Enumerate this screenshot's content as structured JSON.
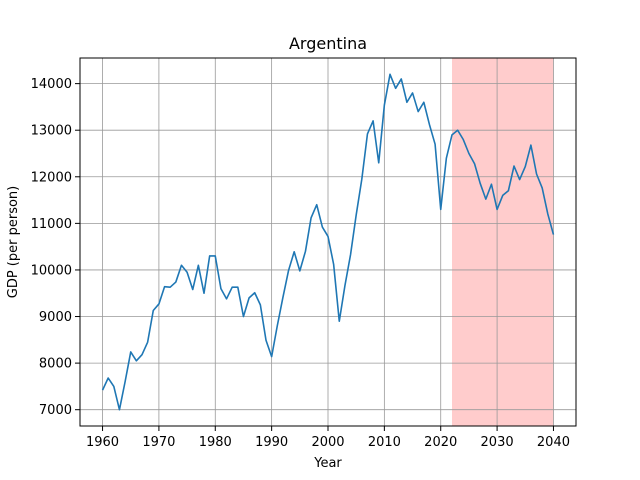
{
  "chart_data": {
    "type": "line",
    "title": "Argentina",
    "xlabel": "Year",
    "ylabel": "GDP (per person)",
    "xlim": [
      1956,
      2044
    ],
    "ylim": [
      6650,
      14550
    ],
    "xticks": [
      1960,
      1970,
      1980,
      1990,
      2000,
      2010,
      2020,
      2030,
      2040
    ],
    "yticks": [
      7000,
      8000,
      9000,
      10000,
      11000,
      12000,
      13000,
      14000
    ],
    "grid": true,
    "line_color": "#1f77b4",
    "highlight": {
      "x_start": 2022,
      "x_end": 2040,
      "color": "#ffcccc"
    },
    "series": [
      {
        "x": [
          1960,
          1961,
          1962,
          1963,
          1964,
          1965,
          1966,
          1967,
          1968,
          1969,
          1970,
          1971,
          1972,
          1973,
          1974,
          1975,
          1976,
          1977,
          1978,
          1979,
          1980,
          1981,
          1982,
          1983,
          1984,
          1985,
          1986,
          1987,
          1988,
          1989,
          1990,
          1991,
          1992,
          1993,
          1994,
          1995,
          1996,
          1997,
          1998,
          1999,
          2000,
          2001,
          2002,
          2003,
          2004,
          2005,
          2006,
          2007,
          2008,
          2009,
          2010,
          2011,
          2012,
          2013,
          2014,
          2015,
          2016,
          2017,
          2018,
          2019,
          2020,
          2021,
          2022,
          2023,
          2024,
          2025,
          2026,
          2027,
          2028,
          2029,
          2030,
          2031,
          2032,
          2033,
          2034,
          2035,
          2036,
          2037,
          2038,
          2039,
          2040
        ],
        "y": [
          7420,
          7680,
          7500,
          7000,
          7600,
          8240,
          8050,
          8180,
          8450,
          9130,
          9270,
          9640,
          9630,
          9740,
          10100,
          9950,
          9580,
          10100,
          9500,
          10300,
          10300,
          9600,
          9380,
          9630,
          9630,
          9000,
          9400,
          9510,
          9250,
          8490,
          8140,
          8800,
          9410,
          9990,
          10390,
          9980,
          10400,
          11120,
          11400,
          10920,
          10720,
          10120,
          8900,
          9660,
          10330,
          11180,
          11950,
          12920,
          13200,
          12300,
          13540,
          14200,
          13900,
          14100,
          13600,
          13800,
          13400,
          13600,
          13120,
          12700,
          11300,
          12400,
          12900,
          13000,
          12800,
          12500,
          12280,
          11860,
          11520,
          11840,
          11300,
          11600,
          11700,
          12230,
          11940,
          12220,
          12680,
          12060,
          11760,
          11200,
          10760
        ]
      }
    ]
  }
}
